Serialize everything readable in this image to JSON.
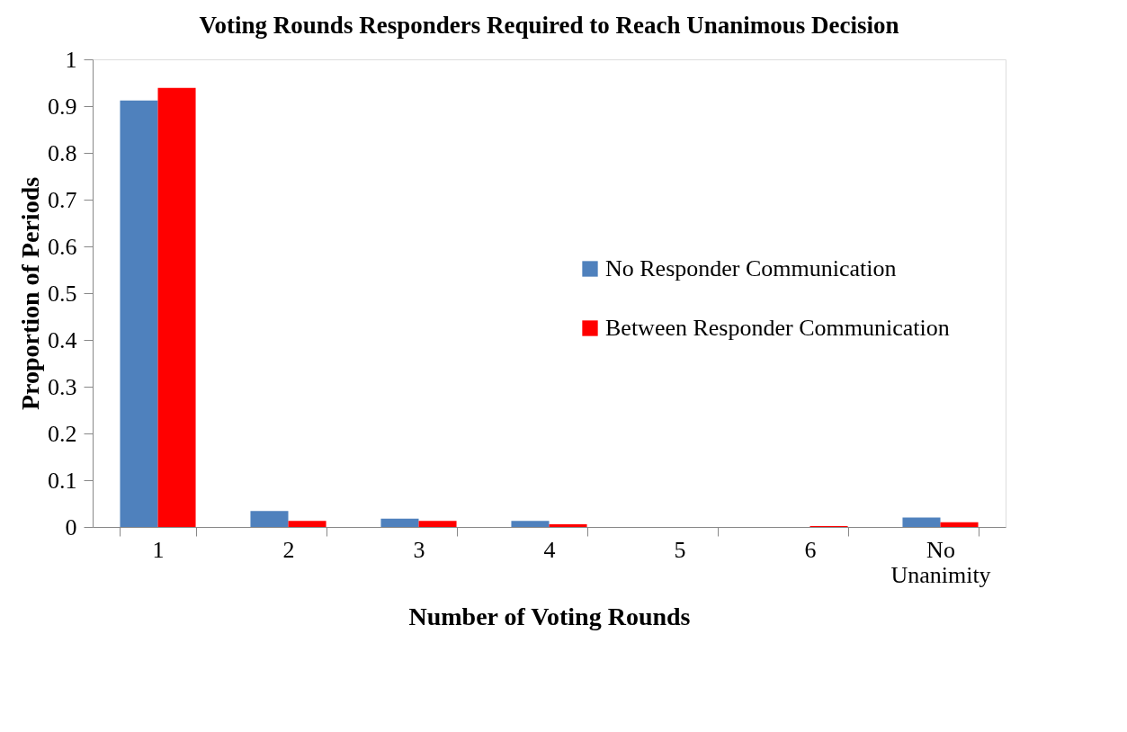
{
  "chart_data": {
    "type": "bar",
    "title": "Voting Rounds Responders Required to Reach Unanimous Decision",
    "xlabel": "Number of Voting Rounds",
    "ylabel": "Proportion of Periods",
    "categories": [
      "1",
      "2",
      "3",
      "4",
      "5",
      "6",
      "No Unanimity"
    ],
    "series": [
      {
        "name": "No Responder Communication",
        "color": "#4f81bd",
        "values": [
          0.912,
          0.034,
          0.018,
          0.013,
          0,
          0,
          0.02
        ]
      },
      {
        "name": "Between Responder Communication",
        "color": "#ff0000",
        "values": [
          0.939,
          0.013,
          0.013,
          0.006,
          0,
          0.002,
          0.01
        ]
      }
    ],
    "ylim": [
      0,
      1
    ],
    "yticks": [
      0,
      0.1,
      0.2,
      0.3,
      0.4,
      0.5,
      0.6,
      0.7,
      0.8,
      0.9,
      1
    ],
    "grid": false,
    "legend": "right"
  }
}
